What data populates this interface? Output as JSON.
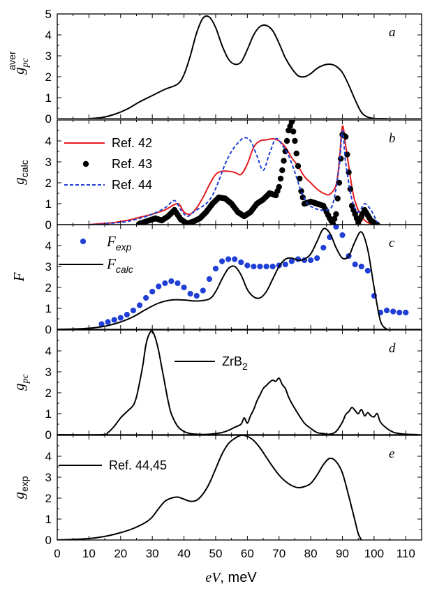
{
  "chart_data": [
    {
      "id": "a",
      "type": "line",
      "panel_letter": "a",
      "ylabel": {
        "main": "g",
        "sub": "pc",
        "sup": "aver"
      },
      "ylim": [
        0,
        5
      ],
      "yticks": [
        0,
        1,
        2,
        3,
        4,
        5
      ],
      "series": [
        {
          "color": "#000000",
          "style": "solid",
          "x": [
            10,
            14,
            18,
            22,
            26,
            30,
            34,
            38,
            40,
            42,
            44,
            46,
            48,
            50,
            52,
            54,
            56,
            58,
            60,
            62,
            64,
            66,
            68,
            70,
            72,
            74,
            76,
            78,
            80,
            82,
            84,
            86,
            88,
            90,
            92,
            94,
            96,
            98,
            100,
            102,
            104
          ],
          "y": [
            0,
            0.05,
            0.2,
            0.45,
            0.8,
            1.1,
            1.4,
            1.65,
            2.1,
            3,
            4.1,
            4.8,
            4.85,
            4.35,
            3.5,
            2.85,
            2.6,
            2.7,
            3.3,
            4.0,
            4.4,
            4.45,
            4.2,
            3.6,
            2.9,
            2.4,
            2.05,
            2.0,
            2.15,
            2.4,
            2.55,
            2.6,
            2.5,
            2.2,
            1.6,
            0.9,
            0.3,
            0.07,
            0.01,
            0,
            0
          ]
        }
      ]
    },
    {
      "id": "b",
      "type": "line",
      "panel_letter": "b",
      "ylabel": {
        "main": "g",
        "sub": "calc"
      },
      "ylim": [
        0,
        5
      ],
      "yticks": [
        0,
        1,
        2,
        3,
        4
      ],
      "legend": [
        "Ref. 42",
        "Ref. 43",
        "Ref. 44"
      ],
      "series": [
        {
          "name": "Ref. 42",
          "color": "#e41a1c",
          "style": "solid",
          "x": [
            10,
            14,
            18,
            22,
            26,
            30,
            34,
            38,
            40,
            42,
            44,
            46,
            48,
            50,
            52,
            54,
            56,
            58,
            60,
            62,
            64,
            66,
            68,
            70,
            72,
            74,
            76,
            78,
            80,
            82,
            84,
            86,
            88,
            89,
            90,
            91,
            92,
            93,
            94,
            96,
            98,
            100
          ],
          "y": [
            0,
            0.05,
            0.1,
            0.2,
            0.35,
            0.5,
            0.7,
            1.0,
            0.6,
            0.5,
            0.8,
            1.3,
            1.9,
            2.4,
            2.55,
            2.55,
            2.5,
            2.4,
            2.9,
            3.7,
            4.0,
            4.05,
            4.1,
            4.0,
            3.7,
            3.2,
            2.8,
            2.3,
            2.0,
            1.7,
            1.5,
            1.45,
            1.9,
            3.0,
            4.7,
            3.8,
            2.8,
            1.8,
            1.1,
            0.4,
            0.1,
            0
          ]
        },
        {
          "name": "Ref. 43",
          "color": "#000000",
          "style": "dots",
          "x": [
            26,
            29,
            31,
            33,
            35,
            37,
            39,
            41,
            43,
            45,
            47,
            49,
            51,
            53,
            55,
            57,
            59,
            61,
            63,
            65,
            67,
            69,
            70,
            71,
            72,
            73,
            74,
            75,
            76,
            77,
            78,
            80,
            82,
            84,
            86,
            87,
            88,
            89,
            90,
            91,
            92,
            93,
            95,
            97,
            99,
            101
          ],
          "y": [
            0.05,
            0.2,
            0.3,
            0.2,
            0.4,
            0.7,
            0.25,
            0.05,
            0.15,
            0.3,
            0.6,
            1.0,
            1.3,
            1.25,
            1.0,
            0.6,
            0.4,
            0.6,
            1.0,
            1.2,
            1.5,
            1.4,
            1.8,
            2.6,
            3.5,
            4.5,
            4.9,
            4.0,
            2.8,
            1.6,
            1.0,
            1.1,
            1.0,
            0.9,
            0.3,
            0.05,
            0.5,
            2.0,
            4.3,
            4.2,
            2.5,
            0.9,
            0.1,
            0.7,
            0.2,
            0
          ]
        },
        {
          "name": "Ref. 44",
          "color": "#1f3fd6",
          "style": "dashed",
          "x": [
            10,
            14,
            18,
            22,
            26,
            30,
            34,
            37,
            39,
            41,
            43,
            45,
            47,
            49,
            51,
            53,
            55,
            57,
            59,
            61,
            63,
            65,
            67,
            69,
            71,
            73,
            75,
            77,
            79,
            81,
            83,
            85,
            87,
            89,
            90,
            91,
            93,
            95,
            97,
            99,
            101
          ],
          "y": [
            0,
            0.02,
            0.08,
            0.15,
            0.3,
            0.5,
            0.8,
            1.15,
            0.7,
            0.4,
            0.6,
            0.8,
            1.0,
            1.4,
            2.1,
            2.9,
            3.5,
            3.9,
            4.15,
            4.0,
            3.3,
            2.6,
            3.4,
            4.1,
            3.8,
            3.3,
            2.5,
            1.6,
            1.0,
            0.8,
            0.7,
            0.7,
            1.0,
            2.8,
            4.5,
            3.0,
            1.2,
            0.6,
            1.0,
            0.7,
            0.1
          ]
        }
      ]
    },
    {
      "id": "c",
      "type": "scatter",
      "panel_letter": "c",
      "ylabel": {
        "main": "F"
      },
      "ylim": [
        0,
        5
      ],
      "yticks": [
        0,
        1,
        2,
        3,
        4
      ],
      "legend": [
        {
          "main": "F",
          "sub": "exp"
        },
        {
          "main": "F",
          "sub": "calc"
        }
      ],
      "series": [
        {
          "name": "F_exp",
          "color": "#1f3fd6",
          "style": "dots",
          "x": [
            14,
            16,
            18,
            20,
            22,
            24,
            26,
            28,
            30,
            32,
            34,
            36,
            38,
            40,
            42,
            44,
            46,
            48,
            50,
            52,
            54,
            56,
            58,
            60,
            62,
            64,
            66,
            68,
            70,
            72,
            74,
            76,
            78,
            80,
            82,
            84,
            86,
            88,
            90,
            92,
            94,
            96,
            98,
            100,
            102,
            104,
            106,
            108,
            110
          ],
          "y": [
            0.25,
            0.35,
            0.45,
            0.55,
            0.7,
            0.9,
            1.15,
            1.5,
            1.8,
            2.05,
            2.2,
            2.3,
            2.2,
            2.0,
            1.7,
            1.6,
            1.85,
            2.4,
            2.9,
            3.25,
            3.35,
            3.35,
            3.2,
            3.05,
            3.0,
            3.0,
            3.0,
            3.0,
            3.05,
            3.1,
            3.25,
            3.35,
            3.3,
            3.3,
            3.4,
            3.9,
            4.4,
            4.9,
            4.5,
            3.5,
            3.1,
            3.0,
            2.8,
            1.6,
            0.8,
            0.9,
            0.85,
            0.8,
            0.8
          ]
        },
        {
          "name": "F_calc",
          "color": "#000000",
          "style": "solid",
          "x": [
            0,
            4,
            8,
            12,
            16,
            20,
            24,
            28,
            32,
            36,
            40,
            44,
            48,
            50,
            52,
            54,
            56,
            58,
            60,
            62,
            64,
            66,
            68,
            70,
            72,
            74,
            76,
            78,
            80,
            82,
            84,
            86,
            88,
            90,
            92,
            94,
            96,
            98,
            100,
            102,
            104
          ],
          "y": [
            0,
            0.01,
            0.03,
            0.08,
            0.18,
            0.35,
            0.6,
            0.95,
            1.25,
            1.4,
            1.4,
            1.35,
            1.45,
            1.8,
            2.4,
            2.9,
            3.0,
            2.6,
            1.9,
            1.55,
            1.5,
            1.8,
            2.4,
            3.0,
            3.35,
            3.4,
            3.3,
            3.35,
            3.6,
            4.2,
            4.8,
            4.6,
            3.9,
            3.4,
            3.5,
            4.2,
            4.65,
            3.8,
            2.0,
            0.4,
            0
          ]
        }
      ]
    },
    {
      "id": "d",
      "type": "line",
      "panel_letter": "d",
      "ylabel": {
        "main": "g",
        "sub": "pc"
      },
      "ylim": [
        0,
        5
      ],
      "yticks": [
        0,
        1,
        2,
        3,
        4
      ],
      "legend": [
        {
          "main": "ZrB",
          "sub": "2"
        }
      ],
      "series": [
        {
          "name": "ZrB2",
          "color": "#000000",
          "style": "solid",
          "x": [
            0,
            14,
            16,
            18,
            20,
            22,
            24,
            25,
            26,
            27,
            28,
            29,
            30,
            31,
            32,
            33,
            34,
            35,
            36,
            38,
            40,
            42,
            44,
            46,
            48,
            50,
            52,
            54,
            56,
            58,
            59,
            60,
            61,
            62,
            63,
            64,
            65,
            66,
            67,
            68,
            69,
            70,
            71,
            72,
            73,
            74,
            76,
            78,
            80,
            82,
            84,
            86,
            88,
            90,
            91,
            92,
            93,
            94,
            95,
            96,
            97,
            98,
            99,
            100,
            101,
            102,
            104,
            106,
            108,
            110,
            114
          ],
          "y": [
            0,
            0,
            0.1,
            0.4,
            0.8,
            1.1,
            1.4,
            1.8,
            2.5,
            3.3,
            4.3,
            4.8,
            4.95,
            4.6,
            4.0,
            3.2,
            2.4,
            1.6,
            1.0,
            0.4,
            0.15,
            0.05,
            0.02,
            0.01,
            0.02,
            0.05,
            0.1,
            0.2,
            0.35,
            0.5,
            0.8,
            0.55,
            0.9,
            1.2,
            1.6,
            1.9,
            2.2,
            2.35,
            2.5,
            2.6,
            2.55,
            2.7,
            2.4,
            2.2,
            1.8,
            1.5,
            1.0,
            0.55,
            0.3,
            0.1,
            0.05,
            0.02,
            0.15,
            0.6,
            0.95,
            1.1,
            1.3,
            1.15,
            1.0,
            1.2,
            0.9,
            1.05,
            0.9,
            0.85,
            1.0,
            0.6,
            0.3,
            0.12,
            0.05,
            0.02,
            0
          ]
        }
      ]
    },
    {
      "id": "e",
      "type": "line",
      "panel_letter": "e",
      "ylabel": {
        "main": "g",
        "sub": "exp"
      },
      "ylim": [
        0,
        5
      ],
      "yticks": [
        0,
        1,
        2,
        3,
        4
      ],
      "legend": [
        "Ref. 44,45"
      ],
      "series": [
        {
          "name": "Ref. 44,45",
          "color": "#000000",
          "style": "solid",
          "x": [
            0,
            4,
            8,
            12,
            16,
            20,
            24,
            28,
            30,
            32,
            34,
            36,
            38,
            40,
            42,
            44,
            46,
            48,
            50,
            52,
            54,
            56,
            58,
            60,
            62,
            64,
            66,
            68,
            70,
            72,
            74,
            76,
            78,
            80,
            82,
            84,
            86,
            88,
            90,
            92,
            94,
            95,
            96
          ],
          "y": [
            0,
            0.02,
            0.05,
            0.1,
            0.2,
            0.35,
            0.55,
            0.85,
            1.1,
            1.5,
            1.85,
            2.0,
            2.05,
            1.95,
            1.85,
            1.9,
            2.2,
            2.7,
            3.4,
            4.1,
            4.6,
            4.85,
            5.0,
            4.95,
            4.75,
            4.4,
            3.95,
            3.5,
            3.1,
            2.8,
            2.6,
            2.5,
            2.55,
            2.7,
            3.1,
            3.6,
            3.9,
            3.75,
            3.2,
            2.1,
            0.9,
            0.3,
            0
          ]
        }
      ]
    }
  ],
  "xaxis": {
    "xlim": [
      0,
      115
    ],
    "ticks": [
      0,
      10,
      20,
      30,
      40,
      50,
      60,
      70,
      80,
      90,
      100,
      110
    ],
    "label_italic": "eV",
    "label_rest": ", meV"
  }
}
